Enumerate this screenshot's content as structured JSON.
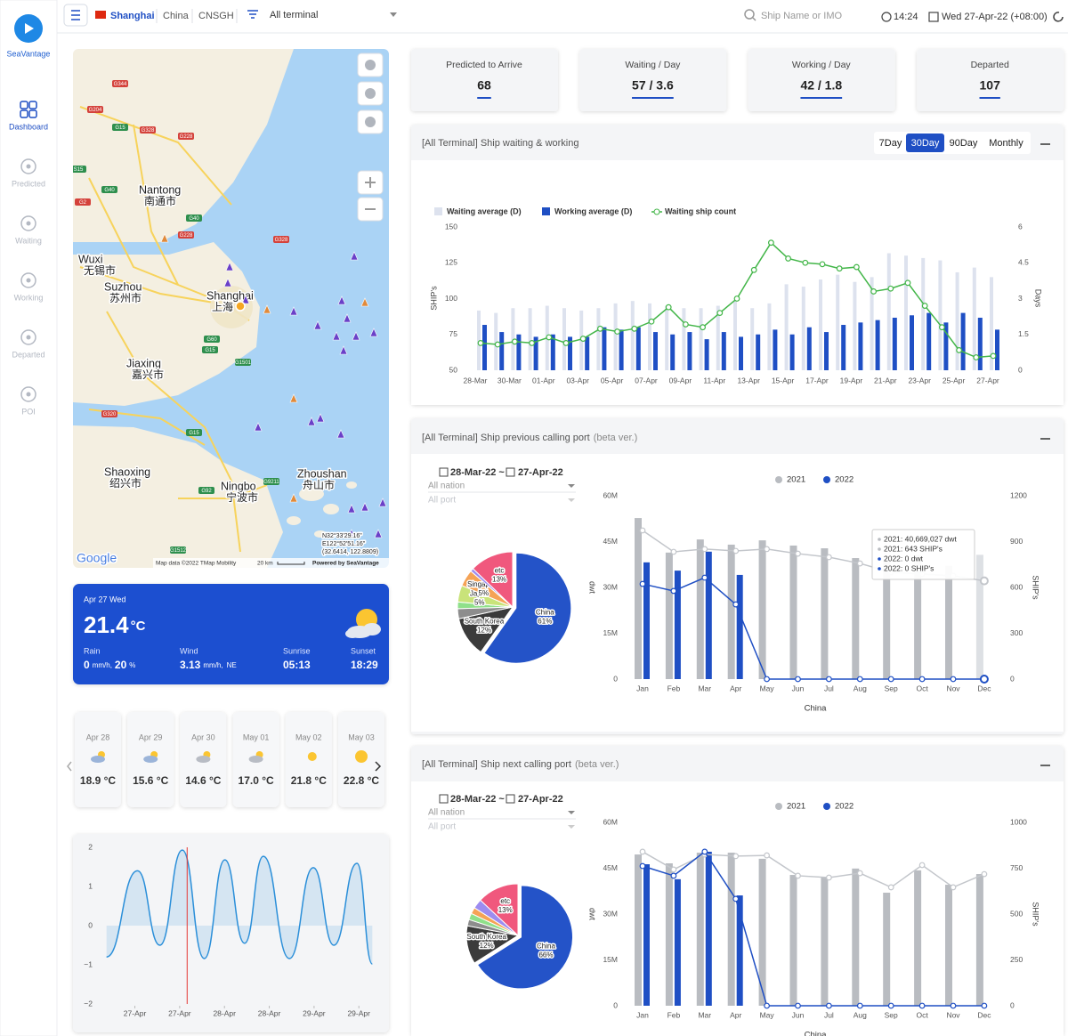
{
  "sidebar": {
    "brand": "SeaVantage",
    "nav": [
      "Dashboard",
      "Predicted",
      "Waiting",
      "Working",
      "Departed",
      "POI"
    ],
    "active": "Dashboard"
  },
  "topbar": {
    "port": "Shanghai",
    "country": "China",
    "code": "CNSGH",
    "terminal": "All terminal",
    "search": "Ship Name or IMO",
    "time": "14:24",
    "date": "Wed 27-Apr-22 (+08:00)"
  },
  "map": {
    "cities": [
      {
        "name": "Nantong",
        "local": "南通市"
      },
      {
        "name": "Wuxi",
        "local": "无锡市"
      },
      {
        "name": "Suzhou",
        "local": "苏州市"
      },
      {
        "name": "Shanghai",
        "local": "上海"
      },
      {
        "name": "Jiaxing",
        "local": "嘉兴市"
      },
      {
        "name": "Shaoxing",
        "local": "绍兴市"
      },
      {
        "name": "Ningbo",
        "local": "宁波市"
      },
      {
        "name": "Zhoushan",
        "local": "舟山市"
      }
    ],
    "roads": [
      "G344",
      "G204",
      "G15",
      "G328",
      "G228",
      "S15",
      "G40",
      "G2",
      "G40",
      "G228",
      "G328",
      "G60",
      "G15",
      "G1501",
      "G320",
      "G15",
      "G92",
      "G9211",
      "G1512"
    ],
    "logo": "Google",
    "attribution": "Map data ©2022 TMap Mobility",
    "scale": "20 km",
    "powered": "Powered by SeaVantage",
    "coords": [
      "N32°33'29.16\"",
      "E122°52'51.16\"",
      "(32.6414, 122.8809)"
    ]
  },
  "weather": {
    "date": "Apr 27 Wed",
    "temp": "21.4",
    "unit": "°C",
    "rain_label": "Rain",
    "rain": "0",
    "rain_unit": "mm/h,",
    "rain_prob": "20",
    "prob_unit": "%",
    "wind_label": "Wind",
    "wind": "3.13",
    "wind_unit": "mm/h,",
    "wind_dir": "NE",
    "sunrise_label": "Sunrise",
    "sunrise": "05:13",
    "sunset_label": "Sunset",
    "sunset": "18:29"
  },
  "forecast": [
    {
      "date": "Apr 28",
      "temp": "18.9 °C"
    },
    {
      "date": "Apr 29",
      "temp": "15.6 °C"
    },
    {
      "date": "Apr 30",
      "temp": "14.6 °C"
    },
    {
      "date": "May 01",
      "temp": "17.0 °C"
    },
    {
      "date": "May 02",
      "temp": "21.8 °C"
    },
    {
      "date": "May 03",
      "temp": "22.8 °C"
    }
  ],
  "tide": {
    "type": "line",
    "color": "#2b8fd9",
    "x": [
      -7.6,
      0.7,
      6.7,
      12.7,
      18.6,
      24.1,
      29.4,
      34.4,
      41.4,
      47.8,
      53.3,
      59.5,
      63.6
    ],
    "values": [
      -0.8,
      1.4,
      -0.5,
      1.93,
      -0.84,
      1.68,
      -0.45,
      1.77,
      -0.84,
      1.48,
      -0.5,
      1.59,
      -0.98
    ],
    "xlim": [
      -8,
      64
    ],
    "xticks": [
      {
        "value": 0,
        "label": "27-Apr"
      },
      {
        "value": 12,
        "label": "27-Apr"
      },
      {
        "value": 24,
        "label": "28-Apr"
      },
      {
        "value": 36,
        "label": "28-Apr"
      },
      {
        "value": 48,
        "label": "29-Apr"
      },
      {
        "value": 60,
        "label": "29-Apr"
      }
    ],
    "ylim": [
      -2,
      2
    ],
    "yticks": [
      2,
      1,
      0,
      {
        "value": -1,
        "label": "−1"
      },
      {
        "value": -2,
        "label": "−2"
      }
    ],
    "now": 14,
    "now_color": "#e53935"
  },
  "kpis": [
    {
      "label": "Predicted to Arrive",
      "value": "68"
    },
    {
      "label": "Waiting / Day",
      "value": "57 / 3.6"
    },
    {
      "label": "Working / Day",
      "value": "42 / 1.8"
    },
    {
      "label": "Departed",
      "value": "107"
    }
  ],
  "waiting_chart": {
    "type": "bar_line",
    "title": "[All Terminal] Ship waiting & working",
    "ranges": [
      "7Day",
      "30Day",
      "90Day",
      "Monthly"
    ],
    "active_range": "30Day",
    "categories": [
      "28-Mar",
      null,
      "30-Mar",
      null,
      "01-Apr",
      null,
      "03-Apr",
      null,
      "05-Apr",
      null,
      "07-Apr",
      null,
      "09-Apr",
      null,
      "11-Apr",
      null,
      "13-Apr",
      null,
      "15-Apr",
      null,
      "17-Apr",
      null,
      "19-Apr",
      null,
      "21-Apr",
      null,
      "23-Apr",
      null,
      "25-Apr",
      null,
      "27-Apr"
    ],
    "series": [
      {
        "name": "Waiting average (D)",
        "kind": "bar",
        "axis": "y2",
        "color": "#dde2ee",
        "values": [
          2.5,
          2.4,
          2.6,
          2.6,
          2.7,
          2.6,
          2.5,
          2.6,
          2.8,
          2.9,
          2.8,
          2.7,
          2.6,
          2.6,
          2.7,
          2.9,
          2.6,
          2.8,
          3.6,
          3.5,
          3.8,
          4.0,
          3.7,
          3.9,
          4.9,
          4.8,
          4.7,
          4.6,
          4.1,
          4.3,
          3.9
        ]
      },
      {
        "name": "Working average (D)",
        "kind": "bar",
        "axis": "y2",
        "color": "#1f4fc4",
        "values": [
          1.9,
          1.6,
          1.5,
          1.4,
          1.5,
          1.4,
          1.4,
          1.8,
          1.7,
          1.8,
          1.6,
          1.5,
          1.6,
          1.3,
          1.6,
          1.4,
          1.5,
          1.7,
          1.5,
          1.8,
          1.6,
          1.9,
          2.0,
          2.1,
          2.2,
          2.3,
          2.4,
          2.0,
          2.4,
          2.2,
          1.7
        ]
      },
      {
        "name": "Waiting ship count",
        "kind": "line",
        "color": "#43b649",
        "values": [
          69,
          68,
          70,
          69,
          73,
          69,
          72,
          79,
          77,
          79,
          84,
          94,
          82,
          80,
          90,
          100,
          120,
          139,
          128,
          125,
          124,
          121,
          122,
          105,
          107,
          111,
          95,
          80,
          64,
          59,
          60
        ]
      }
    ],
    "ylabel": "SHIP's",
    "y2label": "Days",
    "ylim": [
      50,
      150
    ],
    "yticks": [
      50,
      75,
      100,
      125,
      150
    ],
    "y2lim": [
      0,
      6
    ],
    "y2ticks": [
      0,
      1.5,
      3,
      4.5,
      6
    ]
  },
  "prev_port": {
    "title": "[All Terminal] Ship previous calling port",
    "beta": "(beta ver.)",
    "date_from": "28-Mar-22 ~",
    "date_to": "27-Apr-22",
    "nation": "All nation",
    "port": "All port",
    "pie": {
      "type": "pie",
      "labels": [
        "China",
        "South Korea",
        null,
        null,
        "Japan",
        "Singapore",
        null,
        "etc"
      ],
      "values": [
        61,
        12,
        3,
        2,
        5,
        5,
        1,
        13
      ],
      "value_labels": [
        "61%",
        "12%",
        null,
        null,
        "5%",
        "5%",
        null,
        "13%"
      ],
      "colors": [
        "#2453c8",
        "#3b3b3b",
        "#8d8d8d",
        "#8fe08a",
        "#c9e37a",
        "#f5a356",
        "#9d8cf0",
        "#f0587d"
      ]
    },
    "bars": {
      "type": "bar_line",
      "categories": [
        "Jan",
        "Feb",
        "Mar",
        "Apr",
        "May",
        "Jun",
        "Jul",
        "Aug",
        "Sep",
        "Oct",
        "Nov",
        "Dec"
      ],
      "xlabel": "China",
      "series": [
        {
          "name": "2021",
          "color": "#b9bcc1",
          "values": [
            52700000,
            41400000,
            45700000,
            44000000,
            45400000,
            43700000,
            42800000,
            39600000,
            38700000,
            40500000,
            37000000,
            40669027
          ],
          "ships": [
            973,
            833,
            851,
            839,
            851,
            821,
            798,
            757,
            699,
            688,
            676,
            643
          ]
        },
        {
          "name": "2022",
          "color": "#1f4fc4",
          "values": [
            38200000,
            35500000,
            41700000,
            34100000,
            0,
            0,
            0,
            0,
            0,
            0,
            0,
            0
          ],
          "ships": [
            623,
            577,
            664,
            489,
            0,
            0,
            0,
            0,
            0,
            0,
            0,
            0
          ]
        }
      ],
      "ylabel": "dwt",
      "y2label": "SHIP's",
      "ylim": [
        0,
        60000000
      ],
      "yticks": [
        0,
        {
          "value": 15000000,
          "label": "15M"
        },
        {
          "value": 30000000,
          "label": "30M"
        },
        {
          "value": 45000000,
          "label": "45M"
        },
        {
          "value": 60000000,
          "label": "60M"
        }
      ],
      "y2lim": [
        0,
        1200
      ],
      "y2ticks": [
        0,
        300,
        600,
        900,
        1200
      ],
      "tooltip": [
        "2021: 40,669,027 dwt",
        "2021: 643 SHIP's",
        "2022: 0 dwt",
        "2022: 0 SHIP's"
      ]
    }
  },
  "next_port": {
    "title": "[All Terminal] Ship next calling port",
    "beta": "(beta ver.)",
    "date_from": "28-Mar-22 ~",
    "date_to": "27-Apr-22",
    "nation": "All nation",
    "port": "All port",
    "pie": {
      "type": "pie",
      "labels": [
        "China",
        "South Korea",
        null,
        null,
        null,
        null,
        "etc"
      ],
      "values": [
        66,
        12,
        2,
        2,
        2,
        3,
        13
      ],
      "value_labels": [
        "66%",
        "12%",
        null,
        null,
        null,
        null,
        "13%"
      ],
      "colors": [
        "#2453c8",
        "#3b3b3b",
        "#8d8d8d",
        "#8fe08a",
        "#f5a356",
        "#9d8cf0",
        "#f0587d"
      ]
    },
    "bars": {
      "type": "bar_line",
      "categories": [
        "Jan",
        "Feb",
        "Mar",
        "Apr",
        "May",
        "Jun",
        "Jul",
        "Aug",
        "Sep",
        "Oct",
        "Nov",
        "Dec"
      ],
      "xlabel": "China",
      "series": [
        {
          "name": "2021",
          "color": "#b9bcc1",
          "values": [
            49500000,
            46600000,
            50100000,
            50100000,
            48100000,
            42800000,
            42200000,
            44900000,
            37000000,
            44300000,
            39600000,
            43100000
          ],
          "ships": [
            840,
            743,
            825,
            816,
            820,
            709,
            699,
            723,
            646,
            767,
            646,
            718
          ]
        },
        {
          "name": "2022",
          "color": "#1f4fc4",
          "values": [
            46300000,
            41400000,
            50400000,
            36100000,
            0,
            0,
            0,
            0,
            0,
            0,
            0,
            0
          ],
          "ships": [
            762,
            709,
            840,
            583,
            0,
            0,
            0,
            0,
            0,
            0,
            0,
            0
          ]
        }
      ],
      "ylabel": "dwt",
      "y2label": "SHIP's",
      "ylim": [
        0,
        60000000
      ],
      "yticks": [
        0,
        {
          "value": 15000000,
          "label": "15M"
        },
        {
          "value": 30000000,
          "label": "30M"
        },
        {
          "value": 45000000,
          "label": "45M"
        },
        {
          "value": 60000000,
          "label": "60M"
        }
      ],
      "y2lim": [
        0,
        1000
      ],
      "y2ticks": [
        0,
        250,
        500,
        750,
        1000
      ]
    }
  }
}
